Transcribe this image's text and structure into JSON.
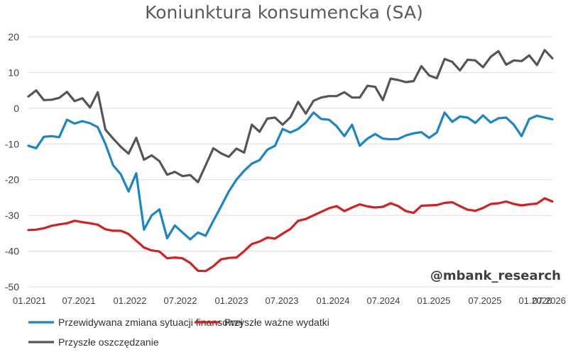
{
  "watermark": "@mbank_research",
  "chart_data": {
    "type": "line",
    "title": "Koniunktura konsumencka (SA)",
    "xlabel": "",
    "ylabel": "",
    "ylim": [
      -50,
      20
    ],
    "yticks": [
      20,
      10,
      0,
      -10,
      -20,
      -30,
      -40,
      -50
    ],
    "x_start": "01.2021",
    "x_end": "07.2026",
    "xticks": [
      "01.2021",
      "07.2021",
      "01.2022",
      "07.2022",
      "01.2023",
      "07.2023",
      "01.2024",
      "07.2024",
      "01.2025",
      "07.2025",
      "01.2026",
      "07.2026"
    ],
    "grid": true,
    "legend_position": "bottom",
    "series": [
      {
        "name": "Przewidywana zmiana sytuacji finansowej",
        "color": "#1a85c8",
        "values": [
          -10.5,
          -11.2,
          -8.0,
          -7.8,
          -8.1,
          -3.2,
          -4.3,
          -3.6,
          -4.2,
          -5.3,
          -10.0,
          -16.0,
          -18.5,
          -23.3,
          -18.2,
          -34.0,
          -30.0,
          -28.3,
          -36.4,
          -32.8,
          -34.8,
          -36.7,
          -34.8,
          -35.7,
          -31.5,
          -27.5,
          -23.3,
          -20.0,
          -17.5,
          -15.5,
          -14.5,
          -11.6,
          -10.5,
          -5.8,
          -6.8,
          -5.8,
          -4.0,
          -1.2,
          -3.0,
          -3.2,
          -5.0,
          -7.8,
          -4.6,
          -10.5,
          -8.5,
          -7.2,
          -8.5,
          -8.7,
          -8.6,
          -7.6,
          -7.0,
          -6.7,
          -8.3,
          -6.8,
          -1.2,
          -3.8,
          -2.3,
          -2.6,
          -4.1,
          -2.0,
          -4.0,
          -2.8,
          -2.6,
          -4.6,
          -7.8,
          -3.0,
          -2.1,
          -2.6,
          -3.1
        ]
      },
      {
        "name": "Przyszłe ważne wydatki",
        "color": "#d42020",
        "values": [
          -34.1,
          -34.0,
          -33.6,
          -32.9,
          -32.5,
          -32.2,
          -31.5,
          -31.9,
          -32.2,
          -32.6,
          -33.9,
          -34.3,
          -34.3,
          -35.2,
          -37.1,
          -39.0,
          -39.8,
          -40.1,
          -42.0,
          -41.8,
          -42.0,
          -43.3,
          -45.5,
          -45.6,
          -44.2,
          -42.3,
          -41.9,
          -41.8,
          -40.0,
          -38.0,
          -37.3,
          -36.2,
          -36.5,
          -35.1,
          -33.8,
          -31.5,
          -31.0,
          -30.0,
          -29.0,
          -28.0,
          -27.4,
          -28.8,
          -27.8,
          -26.9,
          -27.5,
          -27.8,
          -27.6,
          -26.6,
          -27.4,
          -28.8,
          -29.3,
          -27.3,
          -27.2,
          -27.1,
          -26.5,
          -26.3,
          -27.4,
          -28.4,
          -28.7,
          -27.9,
          -26.8,
          -26.6,
          -26.1,
          -26.8,
          -27.2,
          -26.9,
          -26.7,
          -25.2,
          -26.1
        ]
      },
      {
        "name": "Przyszłe oszczędzanie",
        "color": "#555555",
        "values": [
          3.3,
          5.0,
          2.3,
          2.4,
          2.9,
          4.6,
          2.0,
          2.8,
          0.2,
          4.5,
          -6.0,
          -8.5,
          -10.8,
          -12.7,
          -8.3,
          -14.4,
          -13.2,
          -14.8,
          -18.6,
          -17.8,
          -19.0,
          -18.7,
          -20.7,
          -16.0,
          -11.2,
          -12.6,
          -13.6,
          -11.3,
          -12.4,
          -4.6,
          -6.6,
          -2.9,
          -2.6,
          -4.6,
          -2.5,
          1.8,
          -1.5,
          2.1,
          3.0,
          3.4,
          3.4,
          4.5,
          3.0,
          3.0,
          6.3,
          6.0,
          2.3,
          8.3,
          7.9,
          7.3,
          7.6,
          11.8,
          9.2,
          8.4,
          13.8,
          13.0,
          10.6,
          13.6,
          13.4,
          11.5,
          14.4,
          16.0,
          12.2,
          13.4,
          13.2,
          14.8,
          12.1,
          16.3,
          14.0
        ]
      }
    ]
  }
}
